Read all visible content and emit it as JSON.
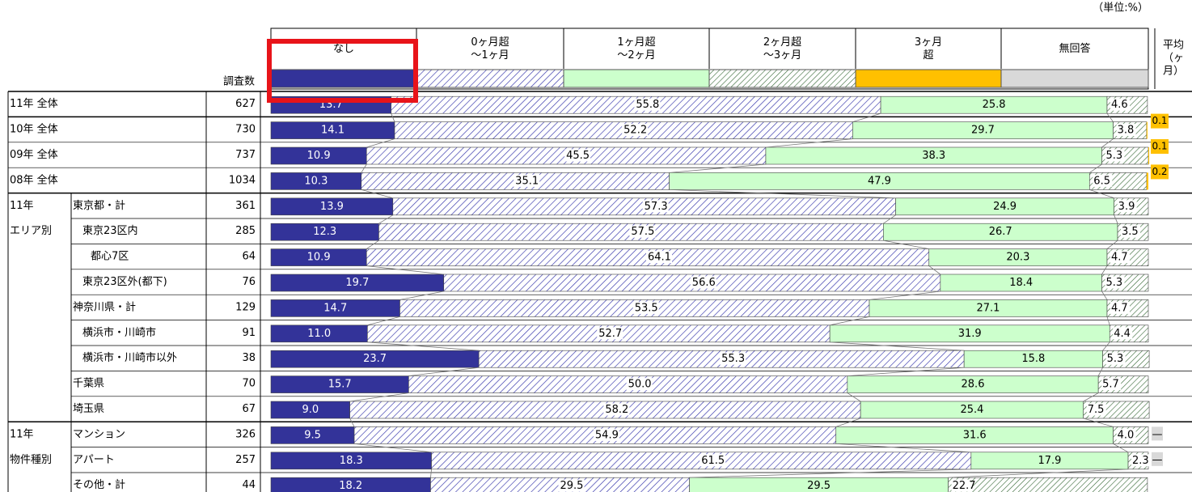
{
  "chart_data": {
    "type": "stacked_bar_h",
    "unit": "（単位:%）",
    "n_header": "調査数",
    "avg_header": [
      "平均",
      "（ヶ",
      "月）"
    ],
    "xlim": [
      0,
      100
    ],
    "categories": [
      "11年 全体",
      "10年 全体",
      "09年 全体",
      "08年 全体",
      "東京都・計",
      "東京23区内",
      "都心7区",
      "東京23区外(都下)",
      "神奈川県・計",
      "横浜市・川崎市",
      "横浜市・川崎市以外",
      "千葉県",
      "埼玉県",
      "マンション",
      "アパート",
      "その他・計"
    ],
    "n": [
      627,
      730,
      737,
      1034,
      361,
      285,
      64,
      76,
      129,
      91,
      38,
      70,
      67,
      326,
      257,
      44
    ],
    "groups": [
      {
        "label": "11年",
        "sub": "エリア別",
        "start": 4,
        "end": 12
      },
      {
        "label": "11年",
        "sub": "物件種別",
        "start": 13,
        "end": 15
      }
    ],
    "series": [
      {
        "name": "なし",
        "color": "#333399",
        "values": [
          13.7,
          14.1,
          10.9,
          10.3,
          13.9,
          12.3,
          10.9,
          19.7,
          14.7,
          11.0,
          23.7,
          15.7,
          9.0,
          9.5,
          18.3,
          18.2
        ],
        "value_labels": [
          "13.7",
          "14.1",
          "10.9",
          "10.3",
          "13.9",
          "12.3",
          "10.9",
          "19.7",
          "14.7",
          "11.0",
          "23.7",
          "15.7",
          "9.0",
          "9.5",
          "18.3",
          "18.2"
        ]
      },
      {
        "name": "0ヶ月超\n～1ヶ月",
        "color": "#3333aa",
        "values": [
          55.8,
          52.2,
          45.5,
          35.1,
          57.3,
          57.5,
          64.1,
          56.6,
          53.5,
          52.7,
          55.3,
          50.0,
          58.2,
          54.9,
          61.5,
          29.5
        ],
        "value_labels": [
          "55.8",
          "52.2",
          "45.5",
          "35.1",
          "57.3",
          "57.5",
          "64.1",
          "56.6",
          "53.5",
          "52.7",
          "55.3",
          "50.0",
          "58.2",
          "54.9",
          "61.5",
          "29.5"
        ]
      },
      {
        "name": "1ヶ月超\n～2ヶ月",
        "color": "#ccffcc",
        "values": [
          25.8,
          29.7,
          38.3,
          47.9,
          24.9,
          26.7,
          20.3,
          18.4,
          27.1,
          31.9,
          15.8,
          28.6,
          25.4,
          31.6,
          17.9,
          29.5
        ],
        "value_labels": [
          "25.8",
          "29.7",
          "38.3",
          "47.9",
          "24.9",
          "26.7",
          "20.3",
          "18.4",
          "27.1",
          "31.9",
          "15.8",
          "28.6",
          "25.4",
          "31.6",
          "17.9",
          "29.5"
        ]
      },
      {
        "name": "2ヶ月超\n～3ヶ月",
        "color": "#336633",
        "values": [
          4.6,
          3.8,
          5.3,
          6.5,
          3.9,
          3.5,
          4.7,
          5.3,
          4.7,
          4.4,
          5.3,
          5.7,
          7.5,
          4.0,
          2.3,
          22.7
        ],
        "value_labels": [
          "4.6",
          "3.8",
          "5.3",
          "6.5",
          "3.9",
          "3.5",
          "4.7",
          "5.3",
          "4.7",
          "4.4",
          "5.3",
          "5.7",
          "7.5",
          "4.0",
          "2.3",
          "22.7"
        ]
      },
      {
        "name": "3ヶ月\n超",
        "color": "#ffc000",
        "values": [
          null,
          0.1,
          0.1,
          0.2,
          null,
          null,
          null,
          null,
          null,
          null,
          null,
          null,
          null,
          null,
          null,
          null
        ],
        "value_labels": [
          null,
          "0.1",
          "0.1",
          "0.2",
          null,
          null,
          null,
          null,
          null,
          null,
          null,
          null,
          null,
          null,
          null,
          null
        ]
      },
      {
        "name": "無回答",
        "color": "#d9d9d9",
        "values": [
          null,
          null,
          null,
          null,
          null,
          null,
          null,
          null,
          null,
          null,
          null,
          null,
          null,
          null,
          null,
          null
        ],
        "value_labels": [
          null,
          null,
          null,
          null,
          null,
          null,
          null,
          null,
          null,
          null,
          null,
          null,
          null,
          "—",
          "—",
          null
        ]
      }
    ]
  }
}
